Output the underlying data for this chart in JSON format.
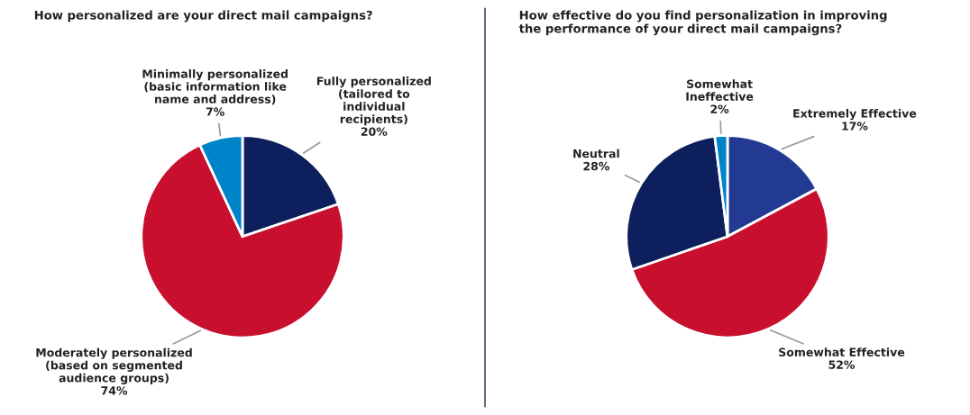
{
  "chart_data": [
    {
      "type": "pie",
      "title": "How personalized are your direct mail campaigns?",
      "categories": [
        "Fully personalized\n(tailored to\nindividual\nrecipients)",
        "Moderately personalized\n(based on segmented\naudience groups)",
        "Minimally personalized\n(basic information like\nname and address)"
      ],
      "values": [
        20,
        74,
        7
      ],
      "colors": [
        "#0d1f5c",
        "#c8102e",
        "#0084c9"
      ],
      "value_labels": [
        "20%",
        "74%",
        "7%"
      ]
    },
    {
      "type": "pie",
      "title": "How effective do you find personalization in improving\nthe performance of your direct mail campaigns?",
      "categories": [
        "Extremely Effective",
        "Somewhat Effective",
        "Neutral",
        "Somewhat\nIneffective"
      ],
      "values": [
        17,
        52,
        28,
        2
      ],
      "colors": [
        "#233a92",
        "#c8102e",
        "#0d1f5c",
        "#0084c9"
      ],
      "value_labels": [
        "17%",
        "52%",
        "28%",
        "2%"
      ]
    }
  ]
}
